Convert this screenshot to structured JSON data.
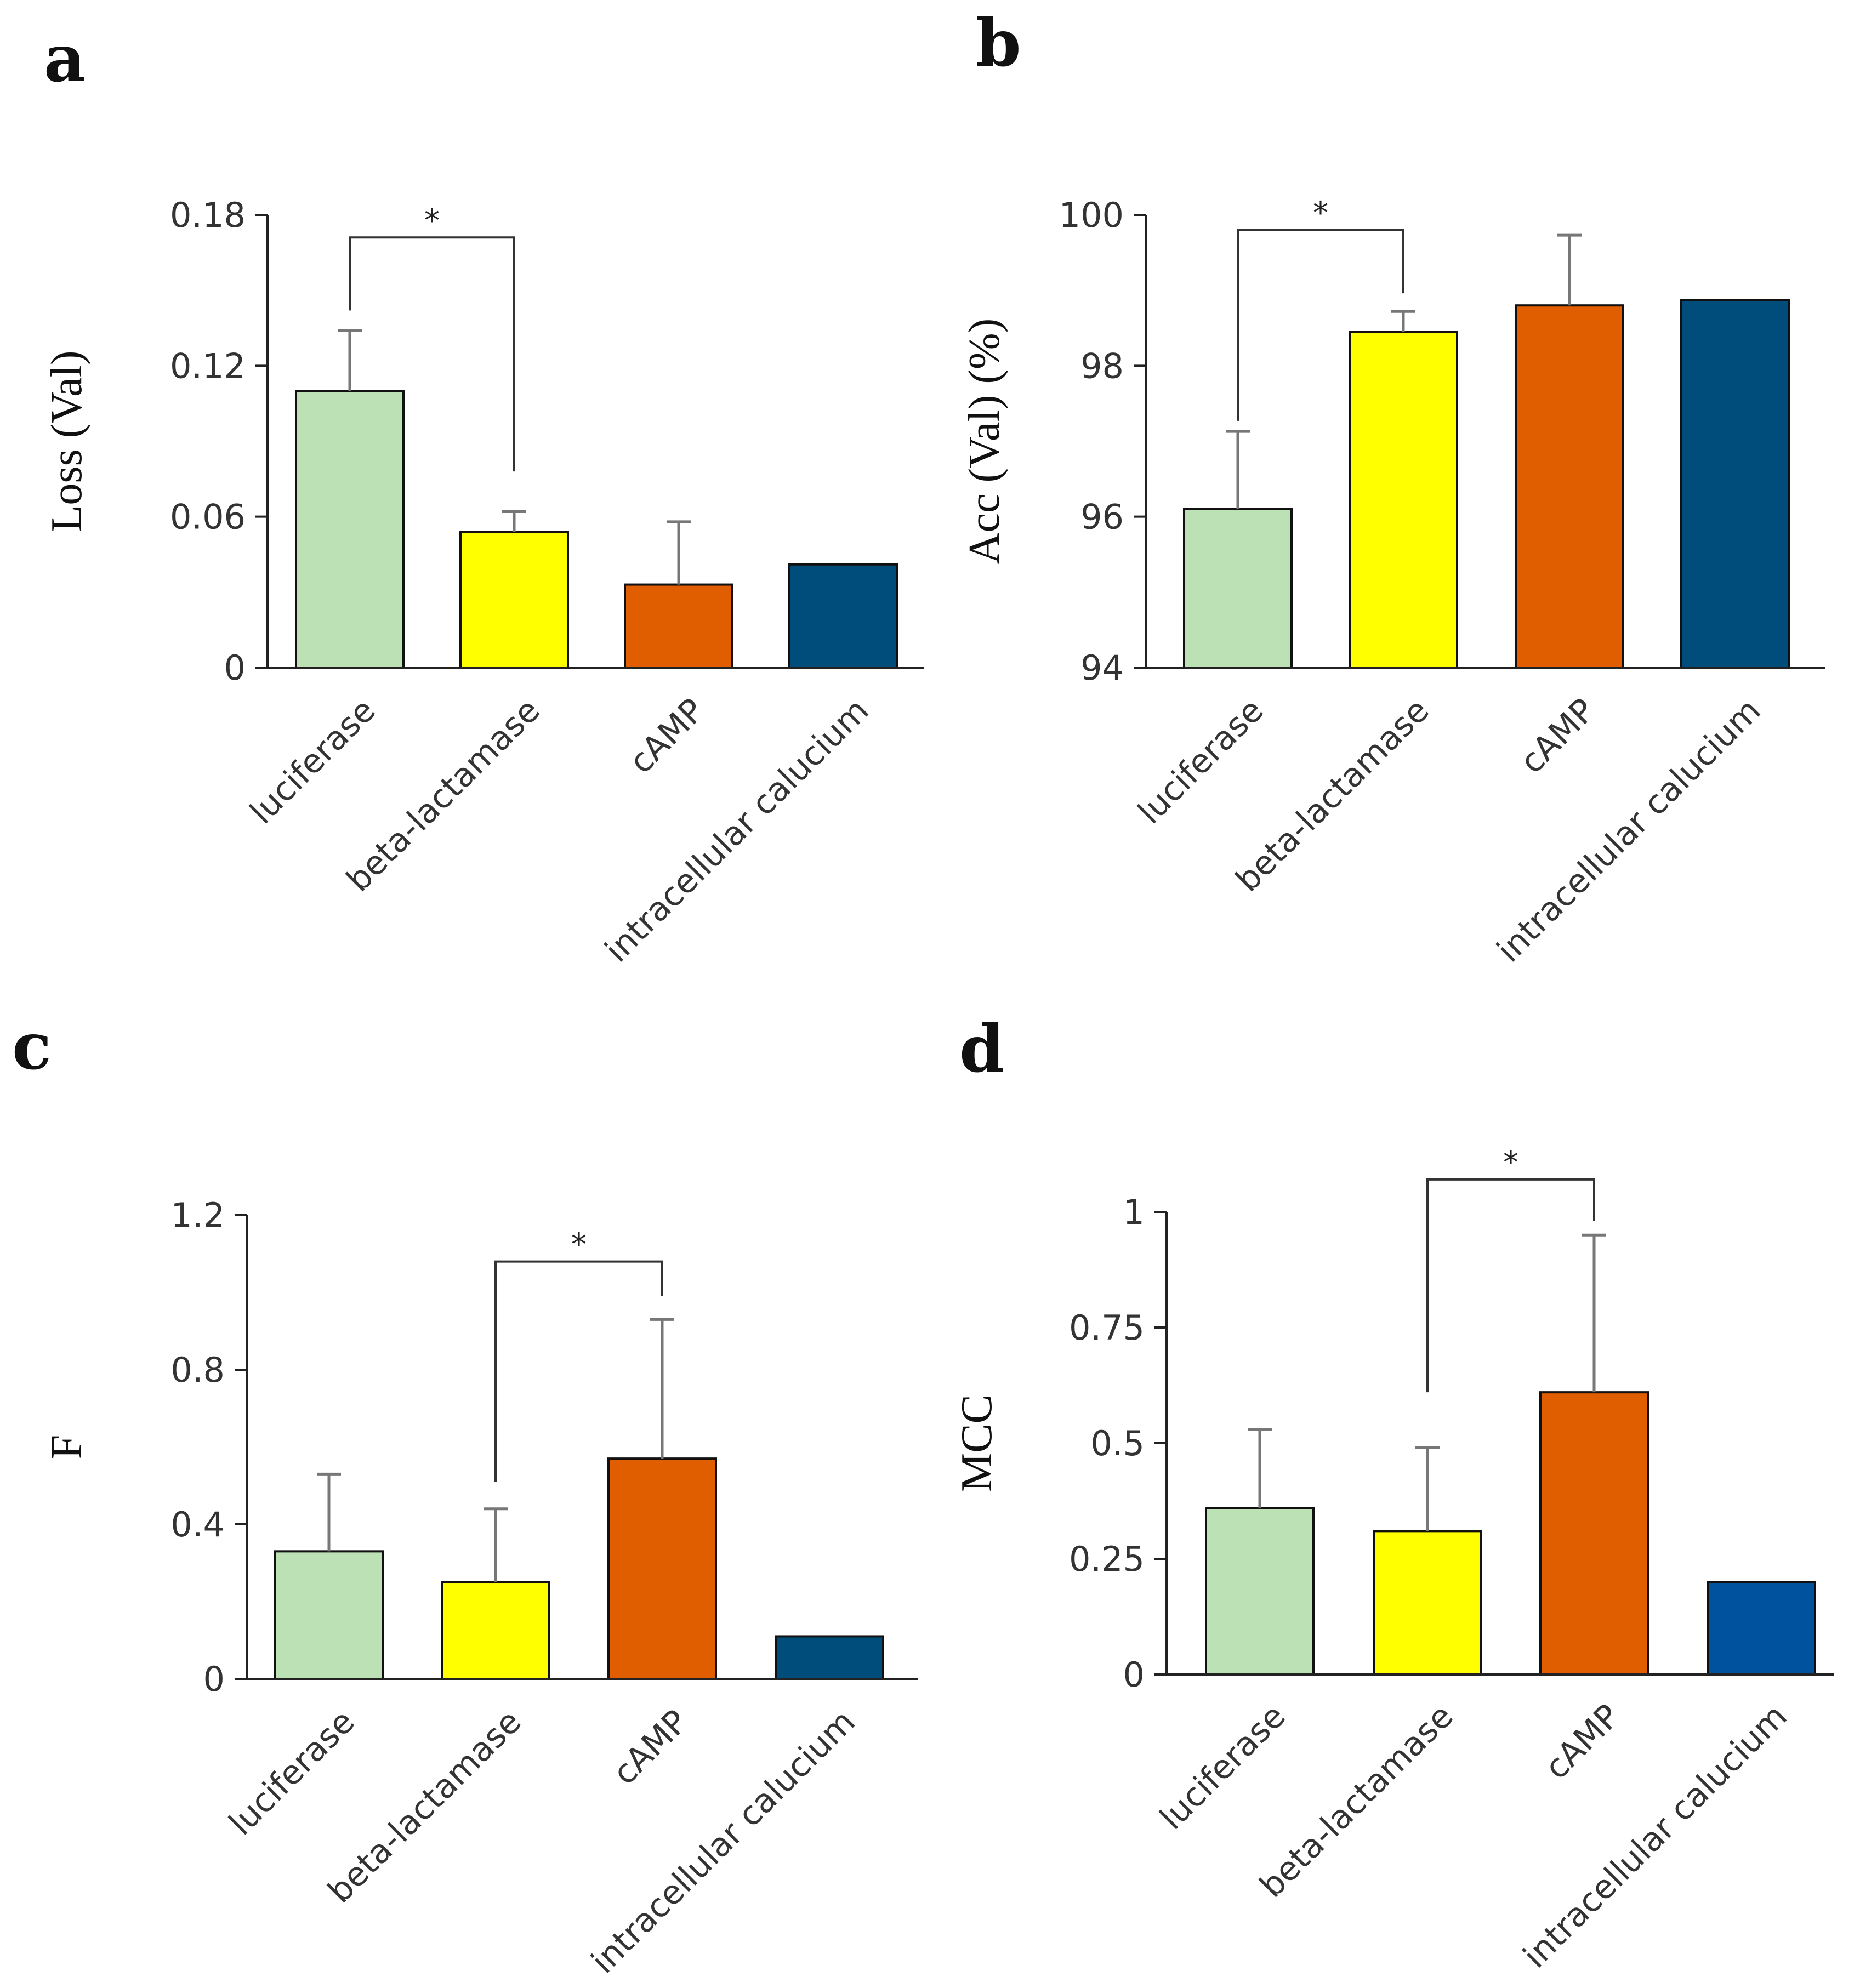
{
  "chart_data": [
    {
      "panel": "a",
      "type": "bar",
      "categories": [
        "luciferase",
        "beta-lactamase",
        "cAMP",
        "intracellular calucium"
      ],
      "values": [
        0.11,
        0.054,
        0.033,
        0.041
      ],
      "error_plus": [
        0.024,
        0.008,
        0.025,
        0
      ],
      "colors": [
        "#bce1b5",
        "#ffff00",
        "#e05d00",
        "#004c7a"
      ],
      "ylabel": "Loss (Val)",
      "ylim": [
        0,
        0.18
      ],
      "yticks": [
        0,
        0.06,
        0.12,
        0.18
      ],
      "ytick_labels": [
        "0",
        "0.06",
        "0.12",
        "0.18"
      ],
      "significance": {
        "from": 0,
        "to": 1,
        "label": "*",
        "y": 0.171,
        "left_end": 0.142,
        "right_end": 0.078
      }
    },
    {
      "panel": "b",
      "type": "bar",
      "categories": [
        "luciferase",
        "beta-lactamase",
        "cAMP",
        "intracellular calucium"
      ],
      "values": [
        96.1,
        98.45,
        98.8,
        98.87
      ],
      "error_plus": [
        1.03,
        0.27,
        0.93,
        0
      ],
      "colors": [
        "#bce1b5",
        "#ffff00",
        "#e05d00",
        "#004c7a"
      ],
      "ylabel": "Acc (Val) (%)",
      "ylim": [
        94,
        100
      ],
      "yticks": [
        94,
        96,
        98,
        100
      ],
      "ytick_labels": [
        "94",
        "96",
        "98",
        "100"
      ],
      "significance": {
        "from": 0,
        "to": 1,
        "label": "*",
        "y": 99.8,
        "left_end": 97.27,
        "right_end": 98.96
      }
    },
    {
      "panel": "c",
      "type": "bar",
      "categories": [
        "luciferase",
        "beta-lactamase",
        "cAMP",
        "intracellular calucium"
      ],
      "values": [
        0.33,
        0.25,
        0.57,
        0.11
      ],
      "error_plus": [
        0.2,
        0.19,
        0.36,
        0
      ],
      "colors": [
        "#bce1b5",
        "#ffff00",
        "#e05d00",
        "#004c7a"
      ],
      "ylabel": "F",
      "ylim": [
        0,
        1.2
      ],
      "yticks": [
        0,
        0.4,
        0.8,
        1.2
      ],
      "ytick_labels": [
        "0",
        "0.4",
        "0.8",
        "1.2"
      ],
      "significance": {
        "from": 1,
        "to": 2,
        "label": "*",
        "y": 1.08,
        "left_end": 0.51,
        "right_end": 0.99
      }
    },
    {
      "panel": "d",
      "type": "bar",
      "categories": [
        "luciferase",
        "beta-lactamase",
        "cAMP",
        "intracellular calucium"
      ],
      "values": [
        0.36,
        0.31,
        0.61,
        0.2
      ],
      "error_plus": [
        0.17,
        0.18,
        0.34,
        0
      ],
      "colors": [
        "#bce1b5",
        "#ffff00",
        "#e05d00",
        "#00529e"
      ],
      "ylabel": "MCC",
      "ylim": [
        0,
        1
      ],
      "yticks": [
        0,
        0.25,
        0.5,
        0.75,
        1
      ],
      "ytick_labels": [
        "0",
        "0.25",
        "0.5",
        "0.75",
        "1"
      ],
      "significance": {
        "from": 1,
        "to": 2,
        "label": "*",
        "y": 1.07,
        "left_end": 0.61,
        "right_end": 0.98
      }
    }
  ]
}
